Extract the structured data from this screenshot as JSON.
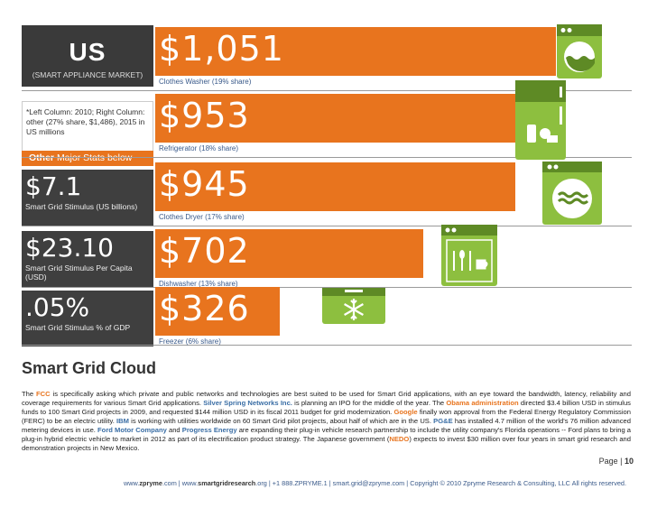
{
  "header": {
    "region": "US",
    "subtitle": "(SMART APPLIANCE MARKET)",
    "note": "*Left Column: 2010; Right Column: other (27% share, $1,486), 2015 in US millions",
    "other_prefix": "Other",
    "other_suffix": "Major Stats below"
  },
  "stats": [
    {
      "value": "$7.1",
      "label": "Smart Grid Stimulus (US billions)"
    },
    {
      "value": "$23.10",
      "label": "Smart Grid Stimulus Per Capita (USD)"
    },
    {
      "value": ".05%",
      "label": "Smart Grid Stimulus % of GDP"
    }
  ],
  "chart_data": {
    "type": "bar",
    "orientation": "horizontal",
    "categories": [
      "Clothes Washer (19% share)",
      "Refrigerator (18% share)",
      "Clothes Dryer (17% share)",
      "Dishwasher (13% share)",
      "Freezer (6% share)"
    ],
    "values": [
      1051,
      953,
      945,
      702,
      326
    ],
    "value_labels": [
      "$1,051",
      "$953",
      "$945",
      "$702",
      "$326"
    ],
    "icons": [
      "washer-icon",
      "refrigerator-icon",
      "dryer-icon",
      "dishwasher-icon",
      "freezer-icon"
    ],
    "bar_color": "#e8741e",
    "xlim": [
      0,
      1051
    ]
  },
  "section": {
    "title": "Smart Grid Cloud",
    "paragraph": [
      {
        "t": "The "
      },
      {
        "t": "FCC",
        "c": "orange"
      },
      {
        "t": " is specifically asking which private and public networks and technologies are best suited to be used for Smart Grid applications, with an eye toward the bandwidth, latency, reliability and coverage requirements for various Smart Grid applications. "
      },
      {
        "t": "Silver Spring Networks Inc.",
        "c": "blue"
      },
      {
        "t": " is planning an IPO for the middle of the year. The "
      },
      {
        "t": "Obama administration",
        "c": "orange"
      },
      {
        "t": " directed $3.4 billion USD in stimulus funds to 100 Smart Grid projects in 2009, and requested $144 million USD in its fiscal 2011 budget for grid modernization. "
      },
      {
        "t": "Google",
        "c": "orange"
      },
      {
        "t": " finally won approval from the Federal Energy Regulatory Commission (FERC) to be an electric utility. "
      },
      {
        "t": "IBM",
        "c": "blue"
      },
      {
        "t": " is working with utilities worldwide on 60 Smart Grid pilot projects, about half of which are in the US. "
      },
      {
        "t": "PG&E",
        "c": "blue"
      },
      {
        "t": " has installed 4.7 million of the world's 76 million advanced metering devices in use. "
      },
      {
        "t": "Ford Motor Company",
        "c": "blue"
      },
      {
        "t": " and "
      },
      {
        "t": "Progress Energy",
        "c": "blue"
      },
      {
        "t": " are expanding their plug-in vehicle research partnership to include the utility company's Florida operations -- Ford plans to bring a plug-in hybrid electric vehicle to market in 2012 as part of its electrification product strategy. The Japanese government ("
      },
      {
        "t": "NEDO",
        "c": "orange"
      },
      {
        "t": ") expects to invest $30 million over four years in smart grid research and demonstration projects in New Mexico."
      }
    ]
  },
  "page": {
    "label": "Page",
    "number": "10"
  },
  "footer": {
    "site1_prefix": "www.",
    "site1_bold": "zpryme",
    "site1_suffix": ".com",
    "site2_prefix": "www.",
    "site2_bold": "smartgridresearch",
    "site2_suffix": ".org",
    "phone": "+1 888.ZPRYME.1",
    "email": "smart.grid@zpryme.com",
    "copyright": "Copyright © 2010 Zpryme Research & Consulting, LLC All rights reserved."
  }
}
